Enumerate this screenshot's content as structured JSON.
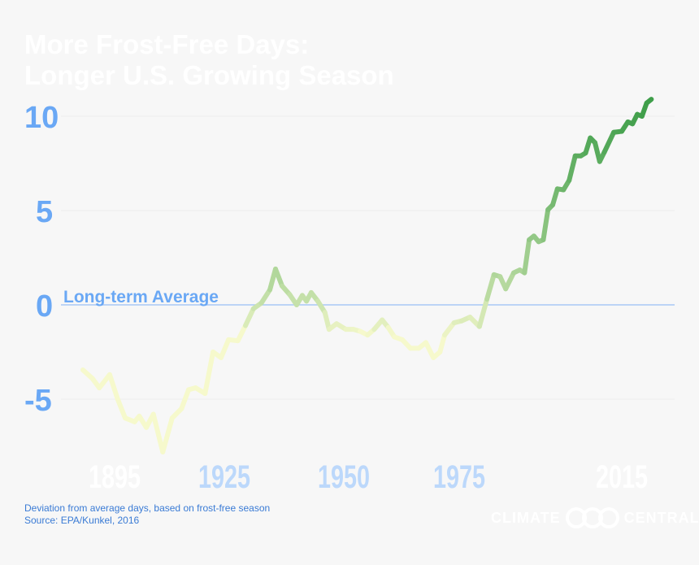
{
  "chart_data": {
    "type": "line",
    "title": "More Frost-Free Days:",
    "subtitle": "Longer U.S. Growing Season",
    "annotation": "Long-term Average",
    "ylim": [
      -8.5,
      11
    ],
    "xlim": [
      1895,
      2016
    ],
    "yticks": [
      10,
      5,
      0,
      -5
    ],
    "xticks": [
      1895,
      1925,
      1950,
      1975,
      2015
    ],
    "grid": true,
    "colors": {
      "low": "#f6f9cc",
      "high": "#3f9e4a",
      "ytick": "#6aa8f5",
      "xtick_light": "#ffffff",
      "xtick_blue": "#bcd8fb",
      "zero_line": "#a9c8f5"
    },
    "x": [
      1895,
      1897,
      1898.5,
      1900.7,
      1902.4,
      1904,
      1906,
      1907,
      1908.5,
      1910,
      1912,
      1914,
      1916,
      1917.5,
      1919,
      1921,
      1922.7,
      1924.4,
      1926,
      1928,
      1929.6,
      1931.3,
      1933,
      1934.8,
      1936,
      1937.4,
      1939,
      1940.5,
      1941.7,
      1942.6,
      1943.6,
      1945,
      1946.5,
      1947.4,
      1949,
      1951,
      1952.6,
      1954,
      1955.6,
      1957,
      1958.7,
      1960,
      1961.3,
      1963,
      1964.7,
      1966.5,
      1968,
      1969.6,
      1971,
      1972,
      1974,
      1975.6,
      1977.4,
      1979.4,
      1981,
      1982.5,
      1983.8,
      1985,
      1986.7,
      1988,
      1989,
      1990,
      1991,
      1992,
      1993,
      1994,
      1995,
      1996,
      1997.3,
      1998.5,
      1999.8,
      2001,
      2002,
      2003,
      2004,
      2005,
      2006,
      2008,
      2009.7,
      2011,
      2012,
      2013,
      2014,
      2015,
      2016
    ],
    "y": [
      -3.45,
      -3.9,
      -4.4,
      -3.7,
      -5,
      -6,
      -6.2,
      -5.9,
      -6.5,
      -5.8,
      -7.8,
      -6,
      -5.5,
      -4.5,
      -4.4,
      -4.7,
      -2.5,
      -2.8,
      -1.85,
      -1.9,
      -1.1,
      -0.2,
      0.1,
      0.8,
      1.9,
      1.0,
      0.55,
      0,
      0.5,
      0.2,
      0.65,
      0.2,
      -0.4,
      -1.3,
      -1,
      -1.3,
      -1.3,
      -1.4,
      -1.6,
      -1.3,
      -0.8,
      -1.2,
      -1.7,
      -1.85,
      -2.3,
      -2.3,
      -2,
      -2.8,
      -2.5,
      -1.6,
      -0.95,
      -0.85,
      -0.65,
      -1.15,
      0.3,
      1.6,
      1.5,
      0.85,
      1.7,
      1.85,
      1.7,
      3.45,
      3.65,
      3.35,
      3.45,
      5.05,
      5.3,
      6.15,
      6.1,
      6.6,
      7.9,
      7.9,
      8.05,
      8.85,
      8.6,
      7.6,
      8.1,
      9.15,
      9.2,
      9.7,
      9.6,
      10.1,
      10,
      10.7,
      10.9
    ]
  },
  "footer": {
    "note": "Deviation from average days, based on frost-free season",
    "source": "Source: EPA/Kunkel, 2016",
    "logo_left": "CLIMATE",
    "logo_right": "CENTRAL"
  }
}
